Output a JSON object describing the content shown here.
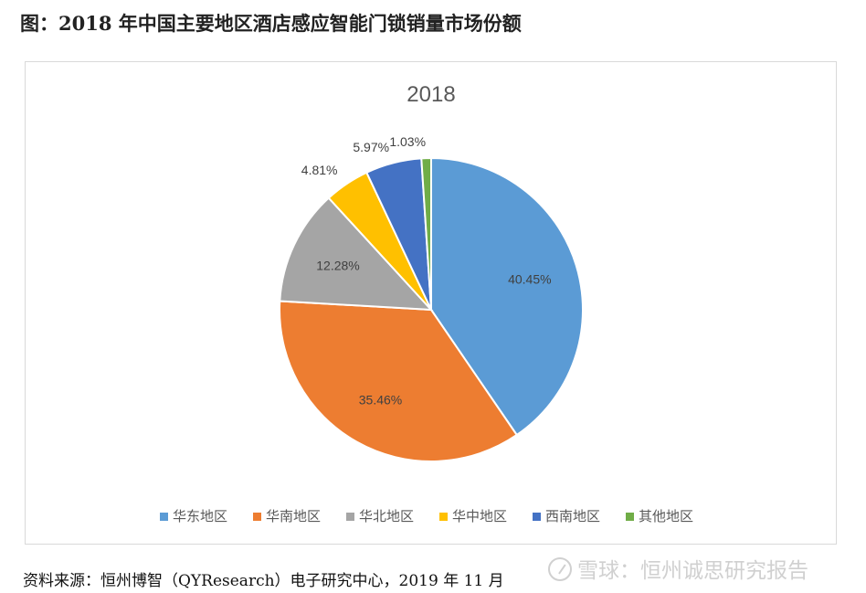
{
  "figure_title": "图：2018 年中国主要地区酒店感应智能门锁销量市场份额",
  "source_text": "资料来源：恒州博智（QYResearch）电子研究中心，2019 年 11 月",
  "watermark": "雪球：恒州诚思研究报告",
  "chart_data": {
    "type": "pie",
    "title": "2018",
    "categories": [
      "华东地区",
      "华南地区",
      "华北地区",
      "华中地区",
      "西南地区",
      "其他地区"
    ],
    "values": [
      40.45,
      35.46,
      12.28,
      4.81,
      5.97,
      1.03
    ],
    "labels": [
      "40.45%",
      "35.46%",
      "12.28%",
      "4.81%",
      "5.97%",
      "1.03%"
    ],
    "unit": "%",
    "colors": [
      "#5b9bd5",
      "#ed7d31",
      "#a5a5a5",
      "#ffc000",
      "#4472c4",
      "#70ad47"
    ],
    "legend_position": "bottom",
    "start_angle": "12 o'clock",
    "direction": "clockwise"
  }
}
